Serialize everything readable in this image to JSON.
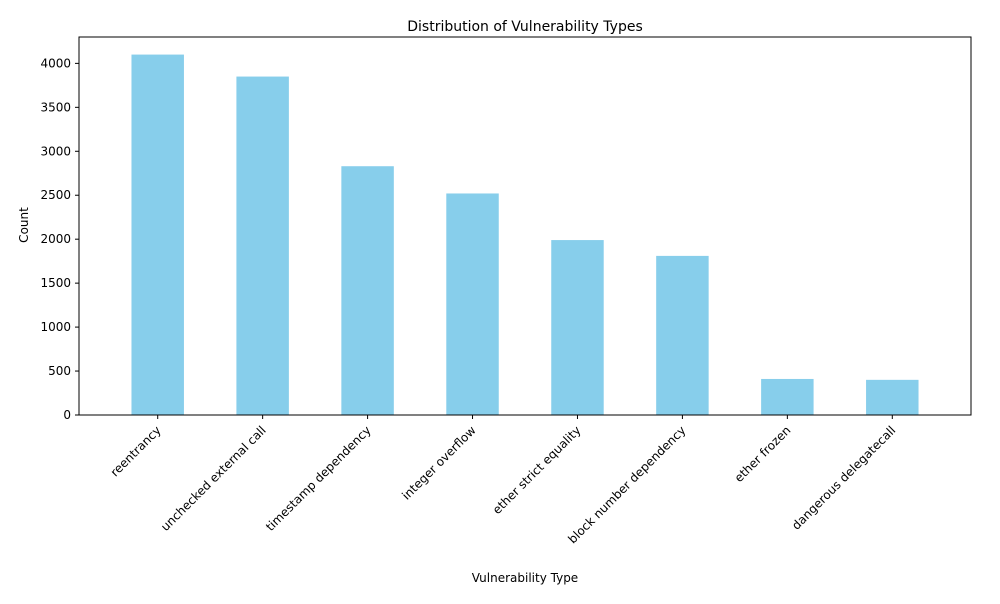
{
  "chart_data": {
    "type": "bar",
    "title": "Distribution of Vulnerability Types",
    "xlabel": "Vulnerability Type",
    "ylabel": "Count",
    "categories": [
      "reentrancy",
      "unchecked external call",
      "timestamp dependency",
      "integer overflow",
      "ether strict equality",
      "block number dependency",
      "ether frozen",
      "dangerous delegatecall"
    ],
    "values": [
      4100,
      3850,
      2830,
      2520,
      1990,
      1810,
      410,
      400
    ],
    "ylim": [
      0,
      4300
    ],
    "yticks": [
      0,
      500,
      1000,
      1500,
      2000,
      2500,
      3000,
      3500,
      4000
    ],
    "bar_color": "#87ceeb",
    "grid": false,
    "legend": "none"
  }
}
